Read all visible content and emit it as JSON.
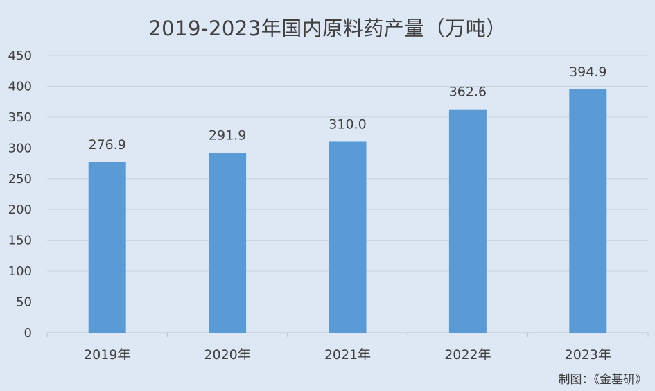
{
  "title": "2019-2023年国内原料药产量（万吨）",
  "source": "制图：《金基研》",
  "colors": {
    "background": "#dde8f4",
    "bar": "#5b9bd5",
    "gridline": "#c9d3de",
    "text": "#404040"
  },
  "chart_data": {
    "type": "bar",
    "title": "2019-2023年国内原料药产量（万吨）",
    "categories": [
      "2019年",
      "2020年",
      "2021年",
      "2022年",
      "2023年"
    ],
    "values": [
      276.9,
      291.9,
      310.0,
      362.6,
      394.9
    ],
    "value_labels": [
      "276.9",
      "291.9",
      "310.0",
      "362.6",
      "394.9"
    ],
    "xlabel": "",
    "ylabel": "",
    "ylim": [
      0,
      450
    ],
    "yticks": [
      0,
      50,
      100,
      150,
      200,
      250,
      300,
      350,
      400,
      450
    ],
    "grid": true,
    "legend": "none"
  }
}
